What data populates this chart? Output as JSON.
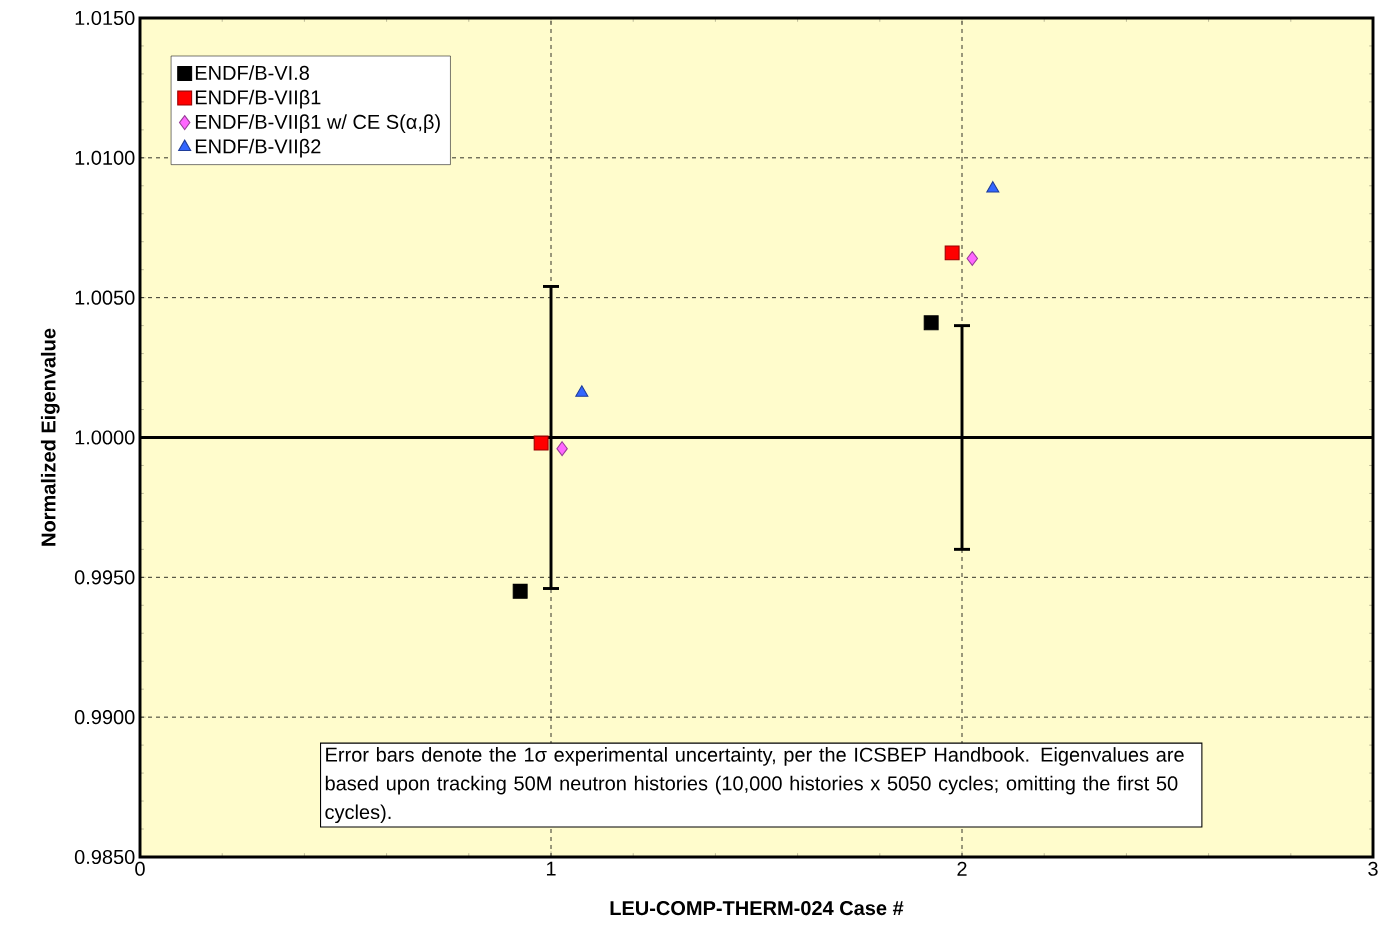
{
  "chart_data": {
    "type": "scatter",
    "xlabel": "LEU-COMP-THERM-024 Case #",
    "ylabel": "Normalized Eigenvalue",
    "xlim": [
      0,
      3
    ],
    "xticks": [
      0,
      1,
      2,
      3
    ],
    "ylim": [
      0.985,
      1.015
    ],
    "yticks": [
      {
        "value": 0.985,
        "label": "0.9850"
      },
      {
        "value": 0.99,
        "label": "0.9900"
      },
      {
        "value": 0.995,
        "label": "0.9950"
      },
      {
        "value": 1.0,
        "label": "1.0000"
      },
      {
        "value": 1.005,
        "label": "1.0050"
      },
      {
        "value": 1.01,
        "label": "1.0100"
      },
      {
        "value": 1.015,
        "label": "1.0150"
      }
    ],
    "grid": true,
    "legend": "top left",
    "series": [
      {
        "type": "line",
        "x": [
          0,
          1,
          2,
          3
        ],
        "values": [
          1.0,
          1.0,
          1.0,
          1.0
        ],
        "errors": [
          null,
          0.0054,
          0.004,
          null
        ],
        "color": "#000000",
        "marker": "none"
      },
      {
        "name": "ENDF/B-VI.8",
        "color": "#000000",
        "marker": "square",
        "x": [
          0.925,
          1.925
        ],
        "values": [
          0.9945,
          1.0041
        ]
      },
      {
        "name": "ENDF/B-VIIβ1",
        "color": "#ff0000",
        "marker": "square",
        "x": [
          0.976,
          1.976
        ],
        "values": [
          0.9998,
          1.0066
        ]
      },
      {
        "name": "ENDF/B-VIIβ1 w/ CE S(α,β)",
        "color": "#ff66ff",
        "marker": "diamond",
        "x": [
          1.027,
          2.025
        ],
        "values": [
          0.9996,
          1.0064
        ]
      },
      {
        "name": "ENDF/B-VIIβ2",
        "color": "#3366ff",
        "marker": "triangle",
        "x": [
          1.075,
          2.075
        ],
        "values": [
          1.0016,
          1.0089
        ]
      }
    ],
    "annotations": [
      "Error bars denote the 1σ experimental uncertainty, per the ICSBEP Handbook. Eigenvalues are based upon tracking 50M neutron histories (10,000 histories x 5050 cycles; omitting the first 50 cycles)."
    ]
  }
}
